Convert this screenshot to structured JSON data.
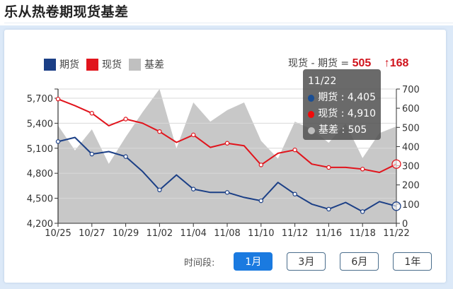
{
  "header": {
    "title": "乐从热卷期现货基差"
  },
  "legend": [
    {
      "label": "期货",
      "color": "#1b3f86"
    },
    {
      "label": "现货",
      "color": "#e1141c"
    },
    {
      "label": "基差",
      "color": "#c0c0c0"
    }
  ],
  "summary": {
    "formula": "现货 - 期货 =",
    "value": "505",
    "delta": "↑168"
  },
  "tooltip": {
    "date": "11/22",
    "rows": [
      {
        "label": "期货 : 4,405",
        "color": "#1b4f94"
      },
      {
        "label": "现货 : 4,910",
        "color": "#f00a0a"
      },
      {
        "label": "基差 : 505",
        "color": "#bdbdbd"
      }
    ]
  },
  "controls": {
    "label": "时间段:",
    "buttons": [
      {
        "label": "1月",
        "active": true
      },
      {
        "label": "3月",
        "active": false
      },
      {
        "label": "6月",
        "active": false
      },
      {
        "label": "1年",
        "active": false
      }
    ]
  },
  "chart_data": {
    "type": "line",
    "title": "乐从热卷期现货基差",
    "x": [
      "10/25",
      "10/26",
      "10/27",
      "10/28",
      "10/29",
      "11/01",
      "11/02",
      "11/03",
      "11/04",
      "11/05",
      "11/08",
      "11/09",
      "11/10",
      "11/11",
      "11/12",
      "11/15",
      "11/16",
      "11/17",
      "11/18",
      "11/19",
      "11/22"
    ],
    "x_tick_labels": [
      "10/25",
      "10/27",
      "10/29",
      "11/02",
      "11/04",
      "11/08",
      "11/10",
      "11/12",
      "11/16",
      "11/18",
      "11/22"
    ],
    "series": [
      {
        "name": "期货",
        "axis": "left",
        "type": "line",
        "color": "#1b3f86",
        "values": [
          5180,
          5230,
          5030,
          5060,
          5000,
          4820,
          4600,
          4780,
          4610,
          4570,
          4570,
          4510,
          4470,
          4690,
          4550,
          4430,
          4370,
          4450,
          4340,
          4460,
          4405
        ]
      },
      {
        "name": "现货",
        "axis": "left",
        "type": "line",
        "color": "#e1141c",
        "values": [
          5690,
          5610,
          5520,
          5370,
          5450,
          5400,
          5300,
          5170,
          5260,
          5110,
          5160,
          5130,
          4900,
          5040,
          5080,
          4910,
          4870,
          4870,
          4850,
          4810,
          4910
        ]
      },
      {
        "name": "基差",
        "axis": "right",
        "type": "area",
        "color": "#c8c8c8",
        "values": [
          510,
          380,
          490,
          310,
          450,
          580,
          700,
          390,
          630,
          530,
          590,
          630,
          430,
          337,
          530,
          490,
          420,
          520,
          340,
          470,
          505
        ]
      }
    ],
    "y_left": {
      "ticks": [
        "4,200",
        "4,500",
        "4,800",
        "5,100",
        "5,400",
        "5,700"
      ],
      "range": [
        4200,
        5800
      ]
    },
    "y_right": {
      "ticks": [
        "0",
        "100",
        "200",
        "300",
        "400",
        "500",
        "600",
        "700"
      ],
      "range": [
        0,
        700
      ]
    },
    "grid": true,
    "legend_position": "top-left"
  }
}
